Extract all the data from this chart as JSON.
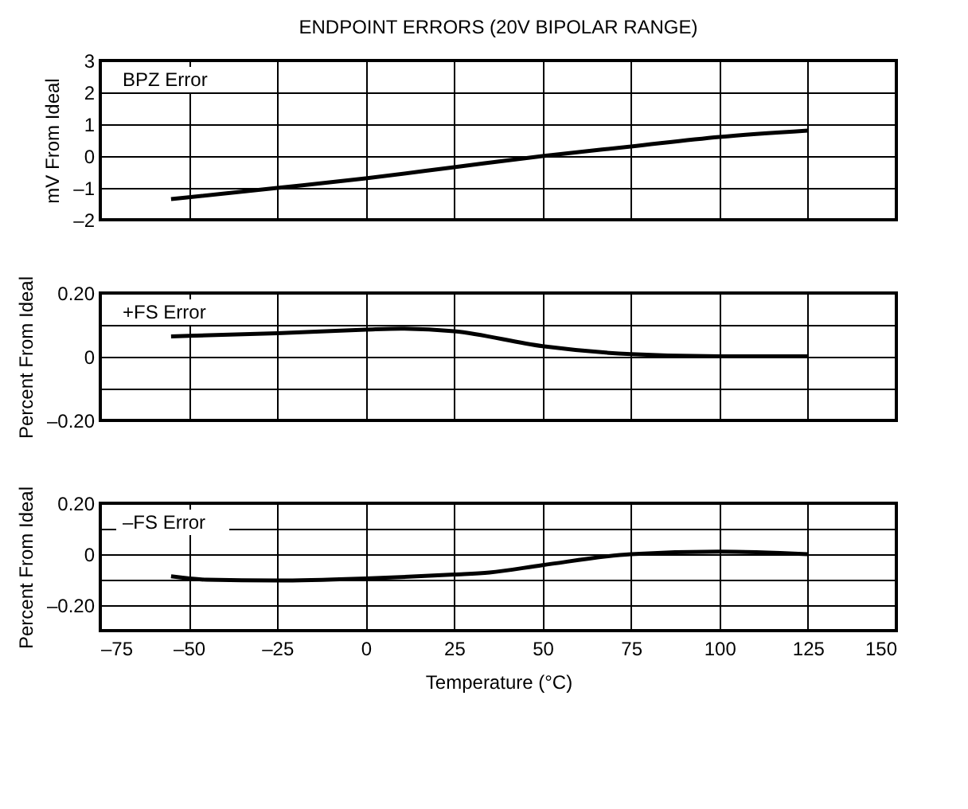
{
  "chart_data": [
    {
      "type": "line",
      "title": "ENDPOINT ERRORS (20V BIPOLAR RANGE)",
      "ylabel": "mV From Ideal",
      "x": [
        -55,
        -25,
        0,
        25,
        50,
        75,
        100,
        125
      ],
      "series": [
        {
          "name": "BPZ Error",
          "color": "#000000",
          "values": [
            -1.35,
            -1.0,
            -0.7,
            -0.35,
            0,
            0.3,
            0.6,
            0.8
          ]
        }
      ],
      "xlim": [
        -75,
        150
      ],
      "xticks": [
        {
          "value": -75,
          "label": null
        },
        {
          "value": -50,
          "label": null
        },
        {
          "value": -25,
          "label": null
        },
        {
          "value": 0,
          "label": null
        },
        {
          "value": 25,
          "label": null
        },
        {
          "value": 50,
          "label": null
        },
        {
          "value": 75,
          "label": null
        },
        {
          "value": 100,
          "label": null
        },
        {
          "value": 125,
          "label": null
        },
        {
          "value": 150,
          "label": null
        }
      ],
      "ylim": [
        -2,
        3
      ],
      "yticks": [
        {
          "value": -2,
          "label": "–2"
        },
        {
          "value": -1,
          "label": "–1"
        },
        0,
        1,
        2,
        3
      ],
      "grid": true,
      "tick_labels": "y"
    },
    {
      "type": "line",
      "ylabel": "Percent From Ideal",
      "x": [
        -55,
        -25,
        0,
        10,
        25,
        50,
        75,
        100,
        125
      ],
      "series": [
        {
          "name": "+FS Error",
          "color": "#000000",
          "values": [
            0.064,
            0.074,
            0.085,
            0.088,
            0.08,
            0.033,
            0.008,
            0.001,
            0.001
          ]
        }
      ],
      "xlim": [
        -75,
        150
      ],
      "xticks": [
        {
          "value": -75,
          "label": null
        },
        {
          "value": -50,
          "label": null
        },
        {
          "value": -25,
          "label": null
        },
        {
          "value": 0,
          "label": null
        },
        {
          "value": 25,
          "label": null
        },
        {
          "value": 50,
          "label": null
        },
        {
          "value": 75,
          "label": null
        },
        {
          "value": 100,
          "label": null
        },
        {
          "value": 125,
          "label": null
        },
        {
          "value": 150,
          "label": null
        }
      ],
      "ylim": [
        -0.2,
        0.2
      ],
      "yticks": [
        {
          "value": -0.2,
          "label": "–0.20"
        },
        {
          "value": -0.1,
          "label": null
        },
        0,
        {
          "value": 0.1,
          "label": null
        },
        {
          "value": 0.2,
          "label": "0.20"
        }
      ],
      "grid": true,
      "tick_labels": "y"
    },
    {
      "type": "line",
      "ylabel": "Percent From Ideal",
      "xlabel": "Temperature (°C)",
      "x": [
        -55,
        -45,
        -25,
        0,
        25,
        35,
        50,
        75,
        100,
        125
      ],
      "series": [
        {
          "name": "–FS Error",
          "color": "#000000",
          "values": [
            -0.087,
            -0.1,
            -0.103,
            -0.095,
            -0.08,
            -0.072,
            -0.043,
            0,
            0.01,
            0
          ]
        }
      ],
      "xlim": [
        -75,
        150
      ],
      "xticks": [
        {
          "value": -75,
          "label": "–75"
        },
        {
          "value": -50,
          "label": "–50"
        },
        {
          "value": -25,
          "label": "–25"
        },
        0,
        25,
        50,
        75,
        100,
        125,
        150
      ],
      "ylim": [
        -0.3,
        0.2
      ],
      "yticks": [
        {
          "value": -0.2,
          "label": "–0.20"
        },
        {
          "value": -0.1,
          "label": null
        },
        0,
        {
          "value": 0.1,
          "label": null
        },
        {
          "value": 0.2,
          "label": "0.20"
        }
      ],
      "grid": true
    }
  ]
}
